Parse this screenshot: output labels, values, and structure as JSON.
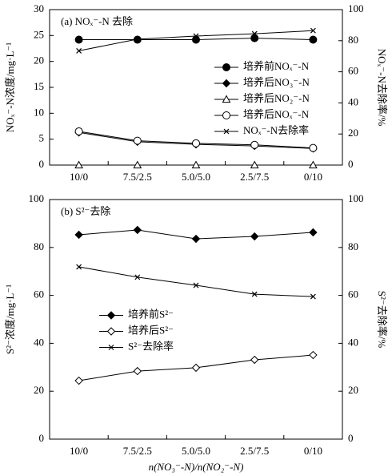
{
  "chart_data": [
    {
      "type": "line",
      "annotation": "(a) NOₓ⁻-N 去除",
      "y_label": "NOₓ⁻-N浓度/mg·L⁻¹",
      "y2_label": "NOₓ⁻-N去除率/%",
      "categories": [
        "10/0",
        "7.5/2.5",
        "5.0/5.0",
        "2.5/7.5",
        "0/10"
      ],
      "ylim": [
        0,
        30
      ],
      "yticks": [
        0,
        5,
        10,
        15,
        20,
        25,
        30
      ],
      "y2lim": [
        0,
        100
      ],
      "y2ticks": [
        0,
        20,
        40,
        60,
        80,
        100
      ],
      "legend": "center right",
      "series": [
        {
          "name": "培养前NOₓ⁻-N",
          "color": "#000000",
          "marker": "filled-circle",
          "values": [
            24.2,
            24.2,
            24.2,
            24.5,
            24.2
          ]
        },
        {
          "name": "培养后NO₃⁻-N",
          "color": "#000000",
          "marker": "filled-diamond",
          "values": [
            6.3,
            4.5,
            4.0,
            3.7,
            3.2
          ]
        },
        {
          "name": "培养后NO₂⁻-N",
          "color": "#000000",
          "marker": "open-triangle",
          "values": [
            0,
            0,
            0,
            0,
            0
          ]
        },
        {
          "name": "培养后NOₓ⁻-N",
          "color": "#000000",
          "marker": "open-circle",
          "values": [
            6.5,
            4.7,
            4.2,
            3.9,
            3.3
          ]
        },
        {
          "name": "NOₓ⁻-N去除率",
          "color": "#000000",
          "marker": "x",
          "axis": "y2",
          "values": [
            73.5,
            81.0,
            83.0,
            84.5,
            86.5
          ]
        }
      ]
    },
    {
      "type": "line",
      "annotation": "(b) S²⁻去除",
      "y_label": "S²⁻浓度/mg·L⁻¹",
      "y2_label": "S²⁻去除率/%",
      "x_label": "n(NO₃⁻-N)/n(NO₂⁻-N)",
      "categories": [
        "10/0",
        "7.5/2.5",
        "5.0/5.0",
        "2.5/7.5",
        "0/10"
      ],
      "ylim": [
        0,
        100
      ],
      "yticks": [
        0,
        20,
        40,
        60,
        80,
        100
      ],
      "y2lim": [
        0,
        100
      ],
      "y2ticks": [
        0,
        20,
        40,
        60,
        80,
        100
      ],
      "legend": "center left",
      "series": [
        {
          "name": "培养前S²⁻",
          "color": "#000000",
          "marker": "filled-diamond",
          "values": [
            85.3,
            87.3,
            83.6,
            84.6,
            86.3
          ]
        },
        {
          "name": "培养后S²⁻",
          "color": "#000000",
          "marker": "open-diamond",
          "values": [
            24.4,
            28.4,
            29.8,
            33.1,
            35.1
          ]
        },
        {
          "name": "S²⁻去除率",
          "color": "#000000",
          "marker": "x",
          "axis": "y2",
          "values": [
            71.9,
            67.6,
            64.2,
            60.5,
            59.5
          ]
        }
      ]
    }
  ]
}
